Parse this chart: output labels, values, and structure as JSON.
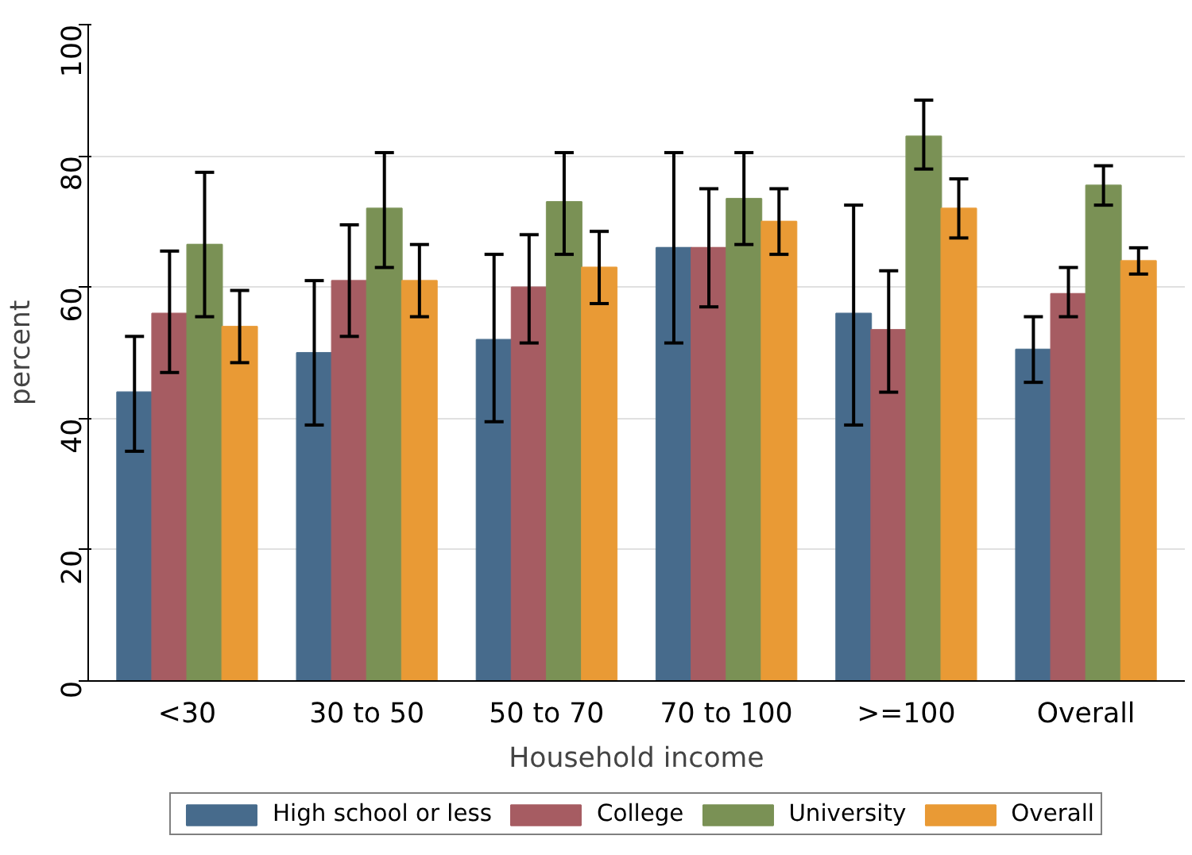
{
  "chart_data": {
    "type": "bar",
    "xlabel": "Household income",
    "ylabel": "percent",
    "categories": [
      "<30",
      "30 to 50",
      "50 to 70",
      "70 to 100",
      ">=100",
      "Overall"
    ],
    "series": [
      {
        "name": "High school or less",
        "color": "#476b8c",
        "values": [
          44,
          50,
          52,
          66,
          56,
          50.5
        ],
        "errors": [
          [
            35,
            52.5
          ],
          [
            39,
            61
          ],
          [
            39.5,
            65
          ],
          [
            51.5,
            80.5
          ],
          [
            39,
            72.5
          ],
          [
            45.5,
            55.5
          ]
        ]
      },
      {
        "name": "College",
        "color": "#a65c62",
        "values": [
          56,
          61,
          60,
          66,
          53.5,
          59
        ],
        "errors": [
          [
            47,
            65.5
          ],
          [
            52.5,
            69.5
          ],
          [
            51.5,
            68
          ],
          [
            57,
            75
          ],
          [
            44,
            62.5
          ],
          [
            55.5,
            63
          ]
        ]
      },
      {
        "name": "University",
        "color": "#7a9155",
        "values": [
          66.5,
          72,
          73,
          73.5,
          83,
          75.5
        ],
        "errors": [
          [
            55.5,
            77.5
          ],
          [
            63,
            80.5
          ],
          [
            65,
            80.5
          ],
          [
            66.5,
            80.5
          ],
          [
            78,
            88.5
          ],
          [
            72.5,
            78.5
          ]
        ]
      },
      {
        "name": "Overall",
        "color": "#e99a35",
        "values": [
          54,
          61,
          63,
          70,
          72,
          64
        ],
        "errors": [
          [
            48.5,
            59.5
          ],
          [
            55.5,
            66.5
          ],
          [
            57.5,
            68.5
          ],
          [
            65,
            75
          ],
          [
            67.5,
            76.5
          ],
          [
            62,
            66
          ]
        ]
      }
    ],
    "ylim": [
      0,
      100
    ],
    "yticks": [
      0,
      20,
      40,
      60,
      80,
      100
    ],
    "grid": "y",
    "legend": "bottom"
  }
}
